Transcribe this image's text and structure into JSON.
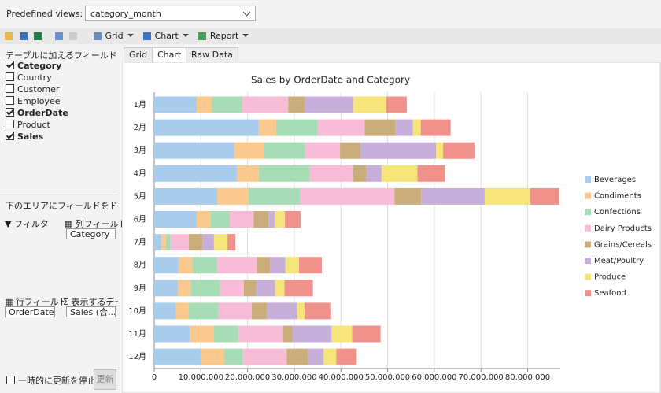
{
  "toolbar": {
    "views_label": "Predefined views:",
    "views_value": "category_month",
    "buttons": [
      "Grid",
      "Chart",
      "Report"
    ]
  },
  "tabs": [
    "Grid",
    "Chart",
    "Raw Data"
  ],
  "active_tab": 1,
  "field_list": {
    "title": "テーブルに加えるフィールドを選択して",
    "fields": [
      {
        "name": "Category",
        "checked": true
      },
      {
        "name": "Country",
        "checked": false
      },
      {
        "name": "Customer",
        "checked": false
      },
      {
        "name": "Employee",
        "checked": false
      },
      {
        "name": "OrderDate",
        "checked": true
      },
      {
        "name": "Product",
        "checked": false
      },
      {
        "name": "Sales",
        "checked": true
      }
    ]
  },
  "pivot": {
    "drag_hint": "下のエリアにフィールドをドラッグして",
    "filter_label": "フィルタ",
    "column_label": "列フィールド",
    "column_fields": [
      "Category"
    ],
    "row_label": "行フィールド",
    "row_fields": [
      "OrderDate"
    ],
    "value_label": "表示するデー",
    "value_fields": [
      "Sales (合..."
    ]
  },
  "footer": {
    "defer_label": "一時的に更新を停止...",
    "update_button": "更新"
  },
  "chart_data": {
    "type": "bar",
    "orientation": "horizontal",
    "stacked": true,
    "title": "Sales by OrderDate and Category",
    "categories": [
      "1月",
      "2月",
      "3月",
      "4月",
      "5月",
      "6月",
      "7月",
      "8月",
      "9月",
      "10月",
      "11月",
      "12月"
    ],
    "series": [
      {
        "name": "Beverages",
        "color": "#a9cbec",
        "values": [
          9100000,
          22400000,
          17200000,
          17700000,
          13500000,
          9100000,
          1500000,
          5200000,
          5100000,
          4700000,
          7600000,
          10100000
        ]
      },
      {
        "name": "Condiments",
        "color": "#f9c98e",
        "values": [
          3200000,
          3700000,
          6400000,
          4700000,
          6700000,
          2900000,
          1000000,
          3000000,
          2700000,
          2700000,
          5200000,
          4900000
        ]
      },
      {
        "name": "Confections",
        "color": "#a8dcb6",
        "values": [
          6600000,
          8900000,
          8600000,
          10900000,
          11100000,
          4200000,
          1000000,
          5200000,
          6200000,
          6400000,
          5200000,
          4000000
        ]
      },
      {
        "name": "Dairy Products",
        "color": "#f7bcd6",
        "values": [
          9800000,
          10100000,
          7600000,
          9300000,
          20200000,
          5100000,
          3900000,
          8600000,
          5200000,
          7100000,
          9600000,
          9400000
        ]
      },
      {
        "name": "Grains/Cereals",
        "color": "#c9ad7a",
        "values": [
          3500000,
          6600000,
          4400000,
          2900000,
          5700000,
          3200000,
          3000000,
          2900000,
          2700000,
          3200000,
          2000000,
          4500000
        ]
      },
      {
        "name": "Meat/Poultry",
        "color": "#c6afd9",
        "values": [
          10400000,
          3700000,
          16200000,
          3200000,
          13600000,
          1300000,
          2400000,
          3200000,
          4000000,
          6600000,
          8400000,
          3400000
        ]
      },
      {
        "name": "Produce",
        "color": "#f5e47a",
        "values": [
          7100000,
          1700000,
          1500000,
          7700000,
          9800000,
          2200000,
          2900000,
          2900000,
          2000000,
          1500000,
          4400000,
          2700000
        ]
      },
      {
        "name": "Seafood",
        "color": "#f0928c",
        "values": [
          4400000,
          6400000,
          6700000,
          5900000,
          6200000,
          3400000,
          1700000,
          4900000,
          6100000,
          5700000,
          6100000,
          4400000
        ]
      }
    ],
    "xlim": [
      0,
      87000000
    ],
    "xticks": [
      0,
      {
        "value": 10000000,
        "label": "10,000,000"
      },
      {
        "value": 20000000,
        "label": "20,000,000"
      },
      {
        "value": 30000000,
        "label": "30,000,000"
      },
      {
        "value": 40000000,
        "label": "40,000,000"
      },
      {
        "value": 50000000,
        "label": "50,000,000"
      },
      {
        "value": 60000000,
        "label": "60,000,000"
      },
      {
        "value": 70000000,
        "label": "70,000,000"
      },
      {
        "value": 80000000,
        "label": "80,000,000"
      }
    ],
    "grid": true,
    "legend": "right"
  }
}
